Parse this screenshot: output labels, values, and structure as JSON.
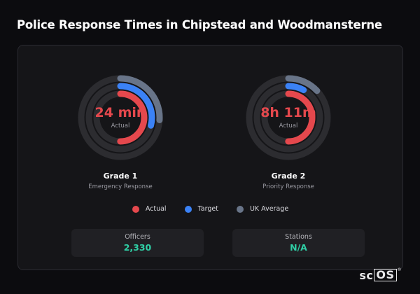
{
  "title": "Police Response Times in Chipstead and Woodmansterne",
  "colors": {
    "actual": "#e5484d",
    "target": "#3b82f6",
    "uk_average": "#687488",
    "track": "#2c2c30",
    "stat_value": "#2fd0a6"
  },
  "gauges": [
    {
      "value": "24 min",
      "value_label": "Actual",
      "title": "Grade 1",
      "subtitle": "Emergency Response",
      "actual_fraction": 0.5,
      "target_fraction": 0.29,
      "uk_average_fraction": 0.26
    },
    {
      "value": "8h 11m",
      "value_label": "Actual",
      "title": "Grade 2",
      "subtitle": "Priority Response",
      "actual_fraction": 0.5,
      "target_fraction": 0.08,
      "uk_average_fraction": 0.13
    }
  ],
  "legend": [
    {
      "label": "Actual",
      "color": "#e5484d"
    },
    {
      "label": "Target",
      "color": "#3b82f6"
    },
    {
      "label": "UK Average",
      "color": "#687488"
    }
  ],
  "stats": [
    {
      "label": "Officers",
      "value": "2,330"
    },
    {
      "label": "Stations",
      "value": "N/A"
    }
  ],
  "brand": {
    "text": "sc",
    "boxed": "OS",
    "mark": "®"
  }
}
